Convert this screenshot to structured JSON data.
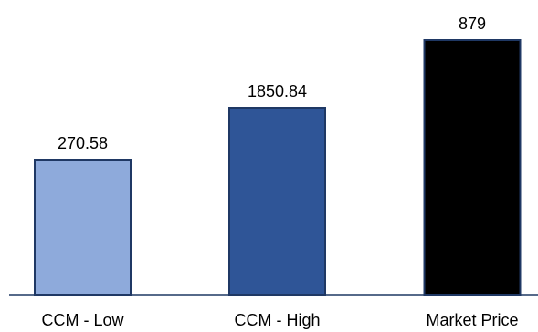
{
  "chart_data": {
    "type": "bar",
    "categories": [
      "CCM - Low",
      "CCM - High",
      "Market Price"
    ],
    "values": [
      270.58,
      1850.84,
      879
    ],
    "data_labels": [
      "270.58",
      "1850.84",
      "879"
    ],
    "colors": [
      "#8eaadb",
      "#2f5597",
      "#000000"
    ],
    "border_color": "#1f3864",
    "title": "",
    "xlabel": "",
    "ylabel": "",
    "grid": false,
    "legend": "none"
  }
}
